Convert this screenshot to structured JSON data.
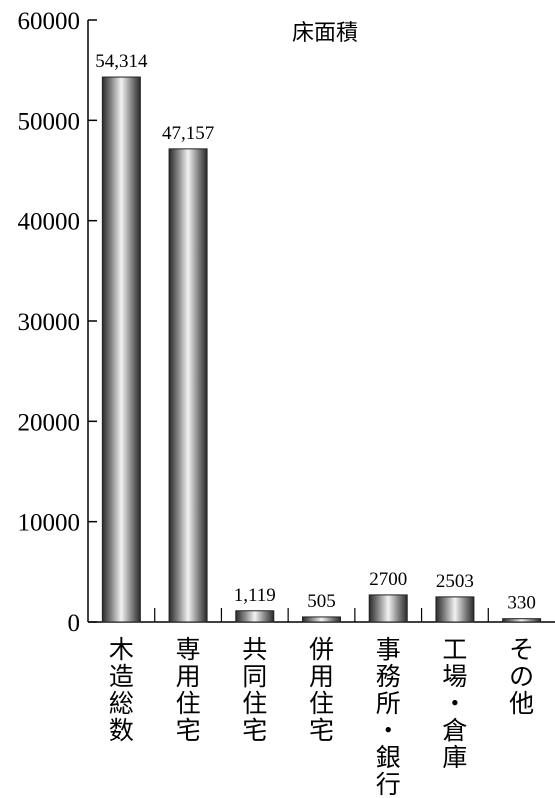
{
  "chart_data": {
    "type": "bar",
    "title": "床面積",
    "xlabel": "",
    "ylabel": "",
    "categories": [
      "木造総数",
      "専用住宅",
      "共同住宅",
      "併用住宅",
      "事務所・銀行",
      "工場・倉庫",
      "その他"
    ],
    "values": [
      54314,
      47157,
      1119,
      505,
      2700,
      2503,
      330
    ],
    "value_labels": [
      "54,314",
      "47,157",
      "1,119",
      "505",
      "2700",
      "2503",
      "330"
    ],
    "ylim": [
      0,
      60000
    ],
    "yticks": [
      0,
      10000,
      20000,
      30000,
      40000,
      50000,
      60000
    ],
    "ytick_labels": [
      "0",
      "10000",
      "20000",
      "30000",
      "40000",
      "50000",
      "60000"
    ],
    "grid": false,
    "legend": "none",
    "bar_fill": "gray cylindrical gradient",
    "colors": {
      "bar_dark": "#2a2a2a",
      "bar_light": "#f2f2f2",
      "axis": "#000000"
    }
  }
}
